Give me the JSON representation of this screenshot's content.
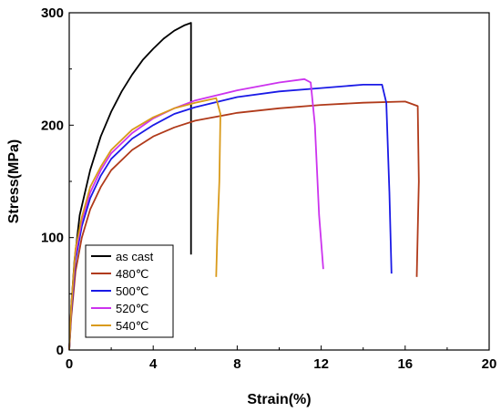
{
  "chart_data": {
    "type": "line",
    "xlabel": "Strain(%)",
    "ylabel": "Stress(MPa)",
    "xlim": [
      0,
      20
    ],
    "ylim": [
      0,
      300
    ],
    "x_ticks": [
      0,
      4,
      8,
      12,
      16,
      20
    ],
    "y_ticks": [
      0,
      100,
      200,
      300
    ],
    "x_tick_labels": [
      "0",
      "4",
      "8",
      "12",
      "16",
      "20"
    ],
    "y_tick_labels": [
      "0",
      "100",
      "200",
      "300"
    ],
    "grid": false,
    "legend_position": "bottom-left",
    "series": [
      {
        "name": "as cast",
        "color": "#000000",
        "points": [
          [
            0,
            0
          ],
          [
            0.1,
            40
          ],
          [
            0.25,
            80
          ],
          [
            0.5,
            120
          ],
          [
            1,
            160
          ],
          [
            1.5,
            190
          ],
          [
            2,
            212
          ],
          [
            2.5,
            230
          ],
          [
            3,
            245
          ],
          [
            3.5,
            258
          ],
          [
            4,
            268
          ],
          [
            4.5,
            277
          ],
          [
            5,
            284
          ],
          [
            5.5,
            289
          ],
          [
            5.8,
            291
          ],
          [
            5.8,
            85
          ]
        ]
      },
      {
        "name": "480℃",
        "color": "#b03a1a",
        "points": [
          [
            0,
            0
          ],
          [
            0.1,
            30
          ],
          [
            0.3,
            70
          ],
          [
            0.6,
            100
          ],
          [
            1,
            125
          ],
          [
            1.5,
            145
          ],
          [
            2,
            160
          ],
          [
            3,
            178
          ],
          [
            4,
            190
          ],
          [
            5,
            198
          ],
          [
            6,
            204
          ],
          [
            8,
            211
          ],
          [
            10,
            215
          ],
          [
            12,
            218
          ],
          [
            14,
            220
          ],
          [
            16,
            221
          ],
          [
            16.6,
            217
          ],
          [
            16.65,
            150
          ],
          [
            16.55,
            65
          ]
        ]
      },
      {
        "name": "500℃",
        "color": "#1a1ae6",
        "points": [
          [
            0,
            0
          ],
          [
            0.1,
            35
          ],
          [
            0.3,
            80
          ],
          [
            0.6,
            110
          ],
          [
            1,
            135
          ],
          [
            1.5,
            155
          ],
          [
            2,
            170
          ],
          [
            3,
            188
          ],
          [
            4,
            200
          ],
          [
            5,
            210
          ],
          [
            6,
            216
          ],
          [
            8,
            225
          ],
          [
            10,
            230
          ],
          [
            12,
            233
          ],
          [
            14,
            236
          ],
          [
            14.9,
            236
          ],
          [
            15.1,
            220
          ],
          [
            15.25,
            140
          ],
          [
            15.35,
            68
          ]
        ]
      },
      {
        "name": "520℃",
        "color": "#cc33ee",
        "points": [
          [
            0,
            0
          ],
          [
            0.1,
            38
          ],
          [
            0.3,
            85
          ],
          [
            0.6,
            115
          ],
          [
            1,
            140
          ],
          [
            1.5,
            160
          ],
          [
            2,
            175
          ],
          [
            3,
            193
          ],
          [
            4,
            206
          ],
          [
            5,
            215
          ],
          [
            6,
            222
          ],
          [
            8,
            231
          ],
          [
            10,
            238
          ],
          [
            11.2,
            241
          ],
          [
            11.5,
            238
          ],
          [
            11.7,
            200
          ],
          [
            11.9,
            120
          ],
          [
            12.1,
            72
          ]
        ]
      },
      {
        "name": "540℃",
        "color": "#d99a1a",
        "points": [
          [
            0,
            0
          ],
          [
            0.1,
            40
          ],
          [
            0.3,
            90
          ],
          [
            0.6,
            118
          ],
          [
            1,
            145
          ],
          [
            1.5,
            163
          ],
          [
            2,
            178
          ],
          [
            3,
            196
          ],
          [
            4,
            207
          ],
          [
            5,
            215
          ],
          [
            6,
            220
          ],
          [
            7,
            224
          ],
          [
            7.2,
            210
          ],
          [
            7.15,
            150
          ],
          [
            7.05,
            100
          ],
          [
            7.0,
            65
          ]
        ]
      }
    ]
  }
}
